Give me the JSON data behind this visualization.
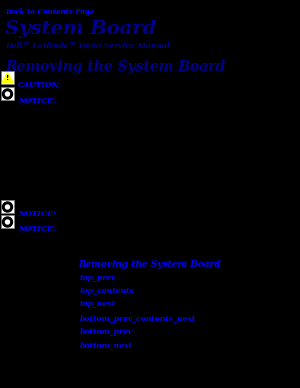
{
  "bg_color": "#000000",
  "link_color": "#0000FF",
  "heading_color": "#00008B",
  "back_link": "Back to Contents Page",
  "page_title": "System Board",
  "subtitle": "Dell™ Latitude™ D600 Service Manual",
  "section_title": "Removing the System Board",
  "caution_text": "CAUTION:",
  "notice_text": "NOTICE:",
  "notice2_text": "NOTICE:",
  "notice3_text": "NOTICE:",
  "bottom_center_link": "Removing the System Board",
  "bottom_links": [
    "top_prev",
    "top_contents",
    "top_next",
    "bottom_prev_contents_next",
    "bottom_prev",
    "bottom_next"
  ],
  "figsize": [
    3.0,
    3.88
  ],
  "dpi": 100
}
